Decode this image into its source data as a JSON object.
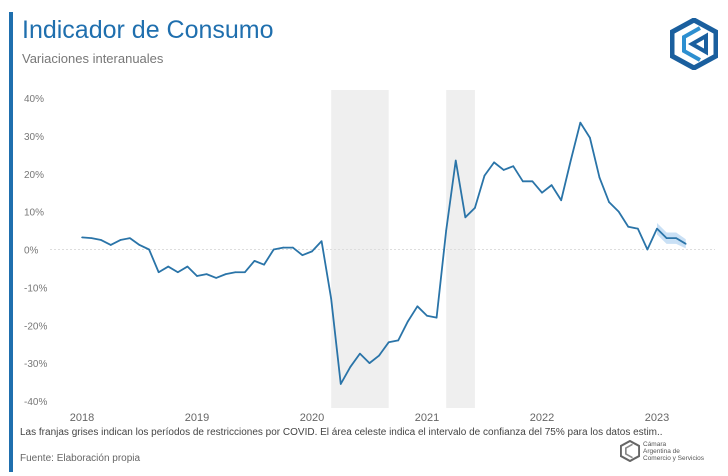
{
  "header": {
    "title": "Indicador de Consumo",
    "subtitle": "Variaciones interanuales",
    "logo": "cac-hexagon-logo"
  },
  "footer": {
    "note": "Las franjas grises indican los períodos de restricciones por COVID. El área celeste indica el intervalo de confianza del 75% para los datos estim..",
    "source": "Fuente: Elaboración propia",
    "org_logo_text": [
      "Cámara",
      "Argentina de",
      "Comercio y Servicios"
    ]
  },
  "colors": {
    "line": "#2a74a8",
    "band": "#bcd8f3",
    "covid": "#efefef",
    "title": "#1f6fae"
  },
  "chart_data": {
    "type": "line",
    "title": "Indicador de Consumo",
    "subtitle": "Variaciones interanuales",
    "ylim": [
      -40,
      40
    ],
    "yticks": [
      40,
      30,
      20,
      10,
      0,
      -10,
      -20,
      -30,
      -40
    ],
    "ytick_labels": [
      "40%",
      "30%",
      "20%",
      "10%",
      "0%",
      "-10%",
      "-20%",
      "-30%",
      "-40%"
    ],
    "xticks": [
      "2018",
      "2019",
      "2020",
      "2021",
      "2022",
      "2023"
    ],
    "x_start": "2018-01",
    "frequency": "monthly",
    "values": [
      3.2,
      3,
      2.5,
      1.2,
      2.5,
      3,
      1.2,
      0,
      -6,
      -4.5,
      -6,
      -4.5,
      -7,
      -6.5,
      -7.5,
      -6.5,
      -6,
      -6,
      -3,
      -4,
      0,
      0.5,
      0.5,
      -1.5,
      -0.5,
      2.2,
      -13,
      -35.5,
      -31,
      -27.5,
      -30,
      -28,
      -24.5,
      -24,
      -19,
      -15,
      -17.5,
      -18,
      5,
      23.5,
      8.5,
      11,
      19.5,
      23,
      21,
      22,
      18,
      18,
      15,
      17,
      13,
      23.5,
      33.5,
      29.5,
      19,
      12.5,
      10,
      6,
      5.5,
      0,
      5.5,
      3,
      3,
      1.5
    ],
    "confidence_band": {
      "level": "75%",
      "from": "2023-01",
      "lower": [
        4,
        1.5,
        1.5,
        0.3
      ],
      "upper": [
        7,
        4.5,
        4.5,
        2.7
      ]
    },
    "shaded_periods": [
      {
        "from": "2020-03",
        "to": "2020-09"
      },
      {
        "from": "2021-03",
        "to": "2021-06"
      }
    ],
    "zero_line": true,
    "grid": false
  }
}
